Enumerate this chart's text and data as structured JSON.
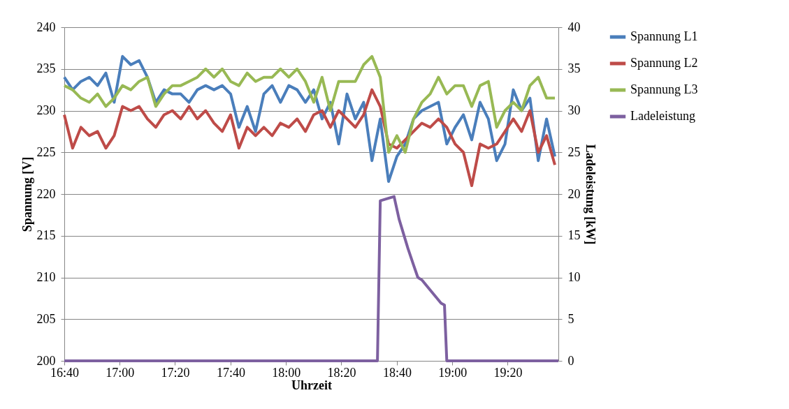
{
  "chart_data": {
    "type": "line",
    "xlabel": "Uhrzeit",
    "ylabel": "Spannung [V]",
    "y2label": "Ladeleistung [kW]",
    "x": [
      16.667,
      16.717,
      16.767,
      16.817,
      16.867,
      16.917,
      16.967,
      17.017,
      17.067,
      17.117,
      17.167,
      17.217,
      17.267,
      17.317,
      17.367,
      17.417,
      17.467,
      17.517,
      17.567,
      17.617,
      17.667,
      17.717,
      17.767,
      17.817,
      17.867,
      17.917,
      17.967,
      18.017,
      18.067,
      18.117,
      18.167,
      18.217,
      18.267,
      18.317,
      18.367,
      18.417,
      18.467,
      18.517,
      18.567,
      18.617,
      18.667,
      18.717,
      18.767,
      18.817,
      18.867,
      18.917,
      18.967,
      19.017,
      19.067,
      19.117,
      19.167,
      19.217,
      19.267,
      19.317,
      19.367,
      19.417,
      19.467,
      19.517,
      19.567,
      19.617
    ],
    "series": [
      {
        "name": "Spannung L1",
        "color": "#4a7ebb",
        "values": [
          234,
          232.5,
          233.5,
          234,
          233,
          234.5,
          231,
          236.5,
          235.5,
          236,
          234,
          231,
          232.5,
          232,
          232,
          231,
          232.5,
          233,
          232.5,
          233,
          232,
          228,
          230.5,
          227.5,
          232,
          233,
          231,
          233,
          232.5,
          231,
          232.5,
          229,
          231,
          226,
          232,
          229,
          231,
          224,
          229,
          221.5,
          224.5,
          226,
          229,
          230,
          230.5,
          231,
          226,
          228,
          229.5,
          226.5,
          231,
          229,
          224,
          226,
          232.5,
          230,
          231.5,
          224,
          229,
          224.5
        ]
      },
      {
        "name": "Spannung L2",
        "color": "#be4b48",
        "values": [
          229.5,
          225.5,
          228,
          227,
          227.5,
          225.5,
          227,
          230.5,
          230,
          230.5,
          229,
          228,
          229.5,
          230,
          229,
          230.5,
          229,
          230,
          228.5,
          227.5,
          229.5,
          225.5,
          228,
          227,
          228,
          227,
          228.5,
          228,
          229,
          227.5,
          229.5,
          230,
          228,
          230,
          229,
          228,
          229.5,
          232.5,
          230.5,
          226,
          225.5,
          226.5,
          227.5,
          228.5,
          228,
          229,
          228,
          226,
          225,
          221,
          226,
          225.5,
          226,
          227.5,
          229,
          227.5,
          230,
          225,
          227,
          223.5
        ]
      },
      {
        "name": "Spannung L3",
        "color": "#98b954",
        "values": [
          233,
          232.5,
          231.5,
          231,
          232,
          230.5,
          231.5,
          233,
          232.5,
          233.5,
          234,
          230.5,
          232,
          233,
          233,
          233.5,
          234,
          235,
          234,
          235,
          233.5,
          233,
          234.5,
          233.5,
          234,
          234,
          235,
          234,
          235,
          233.5,
          231,
          234,
          230,
          233.5,
          233.5,
          233.5,
          235.5,
          236.5,
          234,
          225,
          227,
          225,
          229,
          231,
          232,
          234,
          232,
          233,
          233,
          230.5,
          233,
          233.5,
          228,
          230,
          231,
          230,
          233,
          234,
          231.5,
          231.5
        ]
      },
      {
        "name": "Ladeleistung",
        "color": "#7d60a0",
        "axis": "y2",
        "x": [
          16.667,
          18.55,
          18.567,
          18.65,
          18.68,
          18.733,
          18.767,
          18.793,
          18.817,
          18.867,
          18.933,
          18.953,
          18.967,
          19.638
        ],
        "values": [
          0,
          0,
          19.2,
          19.7,
          17,
          13.5,
          11.5,
          10,
          9.7,
          8.5,
          6.9,
          6.7,
          0,
          0
        ]
      }
    ],
    "xlim": [
      16.667,
      19.638
    ],
    "xticks": [
      {
        "value": 16.667,
        "label": "16:40"
      },
      {
        "value": 17,
        "label": "17:00"
      },
      {
        "value": 17.333,
        "label": "17:20"
      },
      {
        "value": 17.667,
        "label": "17:40"
      },
      {
        "value": 18,
        "label": "18:00"
      },
      {
        "value": 18.333,
        "label": "18:20"
      },
      {
        "value": 18.667,
        "label": "18:40"
      },
      {
        "value": 19,
        "label": "19:00"
      },
      {
        "value": 19.333,
        "label": "19:20"
      }
    ],
    "ylim": [
      200,
      240
    ],
    "yticks": [
      200,
      205,
      210,
      215,
      220,
      225,
      230,
      235,
      240
    ],
    "y2lim": [
      0,
      40
    ],
    "y2ticks": [
      0,
      5,
      10,
      15,
      20,
      25,
      30,
      35,
      40
    ],
    "grid": "y",
    "legend": "right",
    "marker": "none",
    "line_style": "solid"
  }
}
